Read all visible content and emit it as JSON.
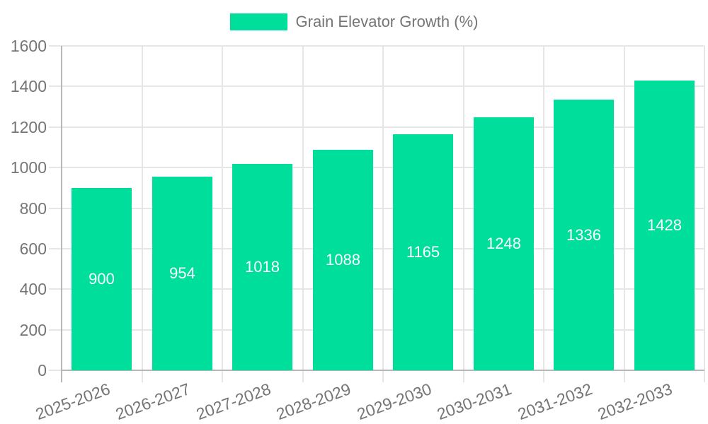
{
  "chart_data": {
    "type": "bar",
    "title": "",
    "legend": "Grain Elevator Growth (%)",
    "legend_position": "top",
    "categories": [
      "2025-2026",
      "2026-2027",
      "2027-2028",
      "2028-2029",
      "2029-2030",
      "2030-2031",
      "2031-2032",
      "2032-2033"
    ],
    "values": [
      900,
      954,
      1018,
      1088,
      1165,
      1248,
      1336,
      1428
    ],
    "xlabel": "",
    "ylabel": "",
    "ylim": [
      0,
      1600
    ],
    "yticks": [
      0,
      200,
      400,
      600,
      800,
      1000,
      1200,
      1400,
      1600
    ],
    "grid": true,
    "bar_value_labels_visible": true,
    "colors": {
      "bar": "#00de9c",
      "bar_value_text": "#ffffff",
      "axis_text": "#757575",
      "gridline": "#e6e6e6",
      "axis_line": "#b7b7b7",
      "background": "#ffffff"
    }
  }
}
